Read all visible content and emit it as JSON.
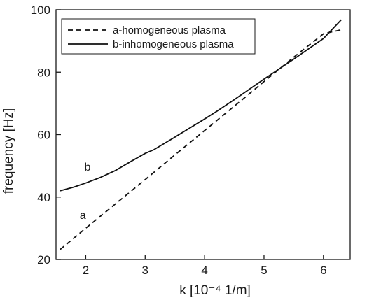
{
  "chart_data": {
    "type": "line",
    "title": "",
    "xlabel": "k  [10⁻⁴ 1/m]",
    "ylabel": "frequency [Hz]",
    "xlim": [
      1.5,
      6.45
    ],
    "ylim": [
      20,
      100
    ],
    "x_ticks": [
      2,
      3,
      4,
      5,
      6
    ],
    "y_ticks": [
      20,
      40,
      60,
      80,
      100
    ],
    "legend_position": "top-left",
    "grid": false,
    "series": [
      {
        "name": "a-homogeneous plasma",
        "style": "dashed",
        "color": "#111111",
        "inline_label": "a",
        "label_at": [
          1.95,
          33
        ],
        "points": [
          [
            1.57,
            23.2
          ],
          [
            2.0,
            30.0
          ],
          [
            2.5,
            37.8
          ],
          [
            3.0,
            45.6
          ],
          [
            3.5,
            53.5
          ],
          [
            4.0,
            61.3
          ],
          [
            4.5,
            69.1
          ],
          [
            5.0,
            77.0
          ],
          [
            5.5,
            84.8
          ],
          [
            6.0,
            92.3
          ],
          [
            6.3,
            93.6
          ]
        ]
      },
      {
        "name": "b-inhomogeneous plasma",
        "style": "solid",
        "color": "#111111",
        "inline_label": "b",
        "label_at": [
          2.03,
          48.5
        ],
        "points": [
          [
            1.57,
            42.0
          ],
          [
            1.8,
            43.2
          ],
          [
            2.0,
            44.5
          ],
          [
            2.25,
            46.3
          ],
          [
            2.5,
            48.5
          ],
          [
            2.75,
            51.3
          ],
          [
            3.0,
            54.0
          ],
          [
            3.15,
            55.2
          ],
          [
            3.5,
            59.2
          ],
          [
            4.0,
            65.0
          ],
          [
            4.2,
            67.4
          ],
          [
            4.5,
            71.2
          ],
          [
            5.0,
            77.8
          ],
          [
            5.5,
            84.2
          ],
          [
            6.0,
            90.8
          ],
          [
            6.3,
            96.8
          ]
        ]
      }
    ]
  }
}
